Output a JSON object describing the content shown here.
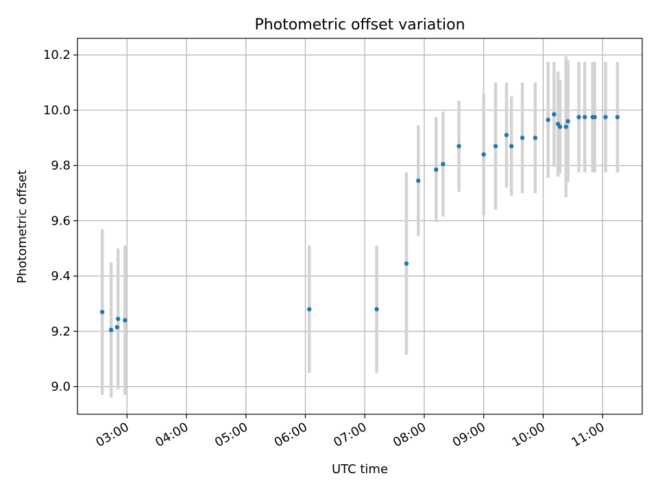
{
  "chart_data": {
    "type": "scatter",
    "title": "Photometric offset variation",
    "xlabel": "UTC time",
    "ylabel": "Photometric offset",
    "xlim": [
      "02:10",
      "11:40"
    ],
    "ylim": [
      8.9,
      10.26
    ],
    "grid": true,
    "x_ticks": [
      "03:00",
      "04:00",
      "05:00",
      "06:00",
      "07:00",
      "08:00",
      "09:00",
      "10:00",
      "11:00"
    ],
    "y_ticks": [
      "9.0",
      "9.2",
      "9.4",
      "9.6",
      "9.8",
      "10.0",
      "10.2"
    ],
    "points_color": "#1f77b4",
    "errorbar_color": "#d3d3d3",
    "series": [
      {
        "points": [
          {
            "x": "02:35",
            "y": 9.27,
            "err": 0.3
          },
          {
            "x": "02:44",
            "y": 9.205,
            "err": 0.245
          },
          {
            "x": "02:50",
            "y": 9.215,
            "err": 0.0
          },
          {
            "x": "02:51",
            "y": 9.245,
            "err": 0.255
          },
          {
            "x": "02:58",
            "y": 9.24,
            "err": 0.27
          },
          {
            "x": "06:04",
            "y": 9.28,
            "err": 0.23
          },
          {
            "x": "07:12",
            "y": 9.28,
            "err": 0.23
          },
          {
            "x": "07:42",
            "y": 9.445,
            "err": 0.33
          },
          {
            "x": "07:54",
            "y": 9.745,
            "err": 0.2
          },
          {
            "x": "08:12",
            "y": 9.785,
            "err": 0.19
          },
          {
            "x": "08:19",
            "y": 9.805,
            "err": 0.19
          },
          {
            "x": "08:35",
            "y": 9.87,
            "err": 0.165
          },
          {
            "x": "09:00",
            "y": 9.84,
            "err": 0.22
          },
          {
            "x": "09:12",
            "y": 9.87,
            "err": 0.23
          },
          {
            "x": "09:23",
            "y": 9.91,
            "err": 0.19
          },
          {
            "x": "09:28",
            "y": 9.87,
            "err": 0.18
          },
          {
            "x": "09:39",
            "y": 9.9,
            "err": 0.2
          },
          {
            "x": "09:52",
            "y": 9.9,
            "err": 0.2
          },
          {
            "x": "10:05",
            "y": 9.965,
            "err": 0.21
          },
          {
            "x": "10:11",
            "y": 9.985,
            "err": 0.19
          },
          {
            "x": "10:15",
            "y": 9.95,
            "err": 0.19
          },
          {
            "x": "10:17",
            "y": 9.94,
            "err": 0.17
          },
          {
            "x": "10:23",
            "y": 9.94,
            "err": 0.255
          },
          {
            "x": "10:25",
            "y": 9.96,
            "err": 0.22
          },
          {
            "x": "10:36",
            "y": 9.975,
            "err": 0.2
          },
          {
            "x": "10:42",
            "y": 9.975,
            "err": 0.2
          },
          {
            "x": "10:50",
            "y": 9.975,
            "err": 0.2
          },
          {
            "x": "10:52",
            "y": 9.975,
            "err": 0.2
          },
          {
            "x": "11:03",
            "y": 9.975,
            "err": 0.2
          },
          {
            "x": "11:15",
            "y": 9.975,
            "err": 0.2
          }
        ]
      }
    ]
  }
}
